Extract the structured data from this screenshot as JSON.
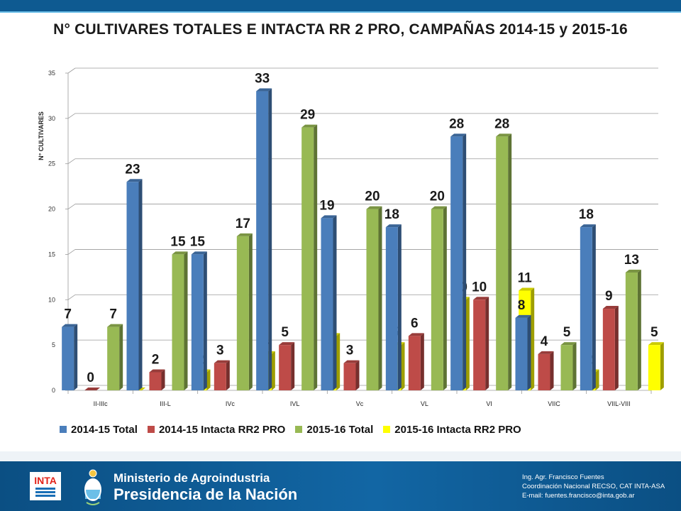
{
  "title": "N° CULTIVARES TOTALES E INTACTA RR 2 PRO, CAMPAÑAS 2014-15 y    2015-16",
  "chart_data": {
    "type": "bar",
    "ylabel": "N° CULTIVARES",
    "ylim": [
      0,
      35
    ],
    "yticks": [
      0,
      5,
      10,
      15,
      20,
      25,
      30,
      35
    ],
    "grid": true,
    "legend_position": "bottom",
    "categories": [
      "II-IIIc",
      "III-L",
      "IVc",
      "IVL",
      "Vc",
      "VL",
      "VI",
      "VIIC",
      "VIIL-VIII"
    ],
    "series": [
      {
        "name": "2014-15 Total",
        "color": "#4a7ebb",
        "values": [
          7,
          23,
          15,
          33,
          19,
          18,
          28,
          8,
          18
        ]
      },
      {
        "name": "2014-15 Intacta RR2 PRO",
        "color": "#be4b48",
        "values": [
          0,
          2,
          3,
          5,
          3,
          6,
          10,
          4,
          9
        ]
      },
      {
        "name": "2015-16 Total",
        "color": "#98b954",
        "values": [
          7,
          15,
          17,
          29,
          20,
          20,
          28,
          5,
          13
        ]
      },
      {
        "name": "2015-16 Intacta RR2 PRO",
        "color": "#ffff00",
        "values": [
          0,
          2,
          4,
          6,
          5,
          10,
          11,
          2,
          5
        ]
      }
    ]
  },
  "footer": {
    "logo_text": "INTA",
    "ministry": "Ministerio de Agroindustria",
    "presidency": "Presidencia de la Nación",
    "contact": [
      "Ing. Agr. Francisco Fuentes",
      "Coordinación Nacional RECSO, CAT INTA-ASA",
      "E-mail: fuentes.francisco@inta.gob.ar"
    ]
  }
}
